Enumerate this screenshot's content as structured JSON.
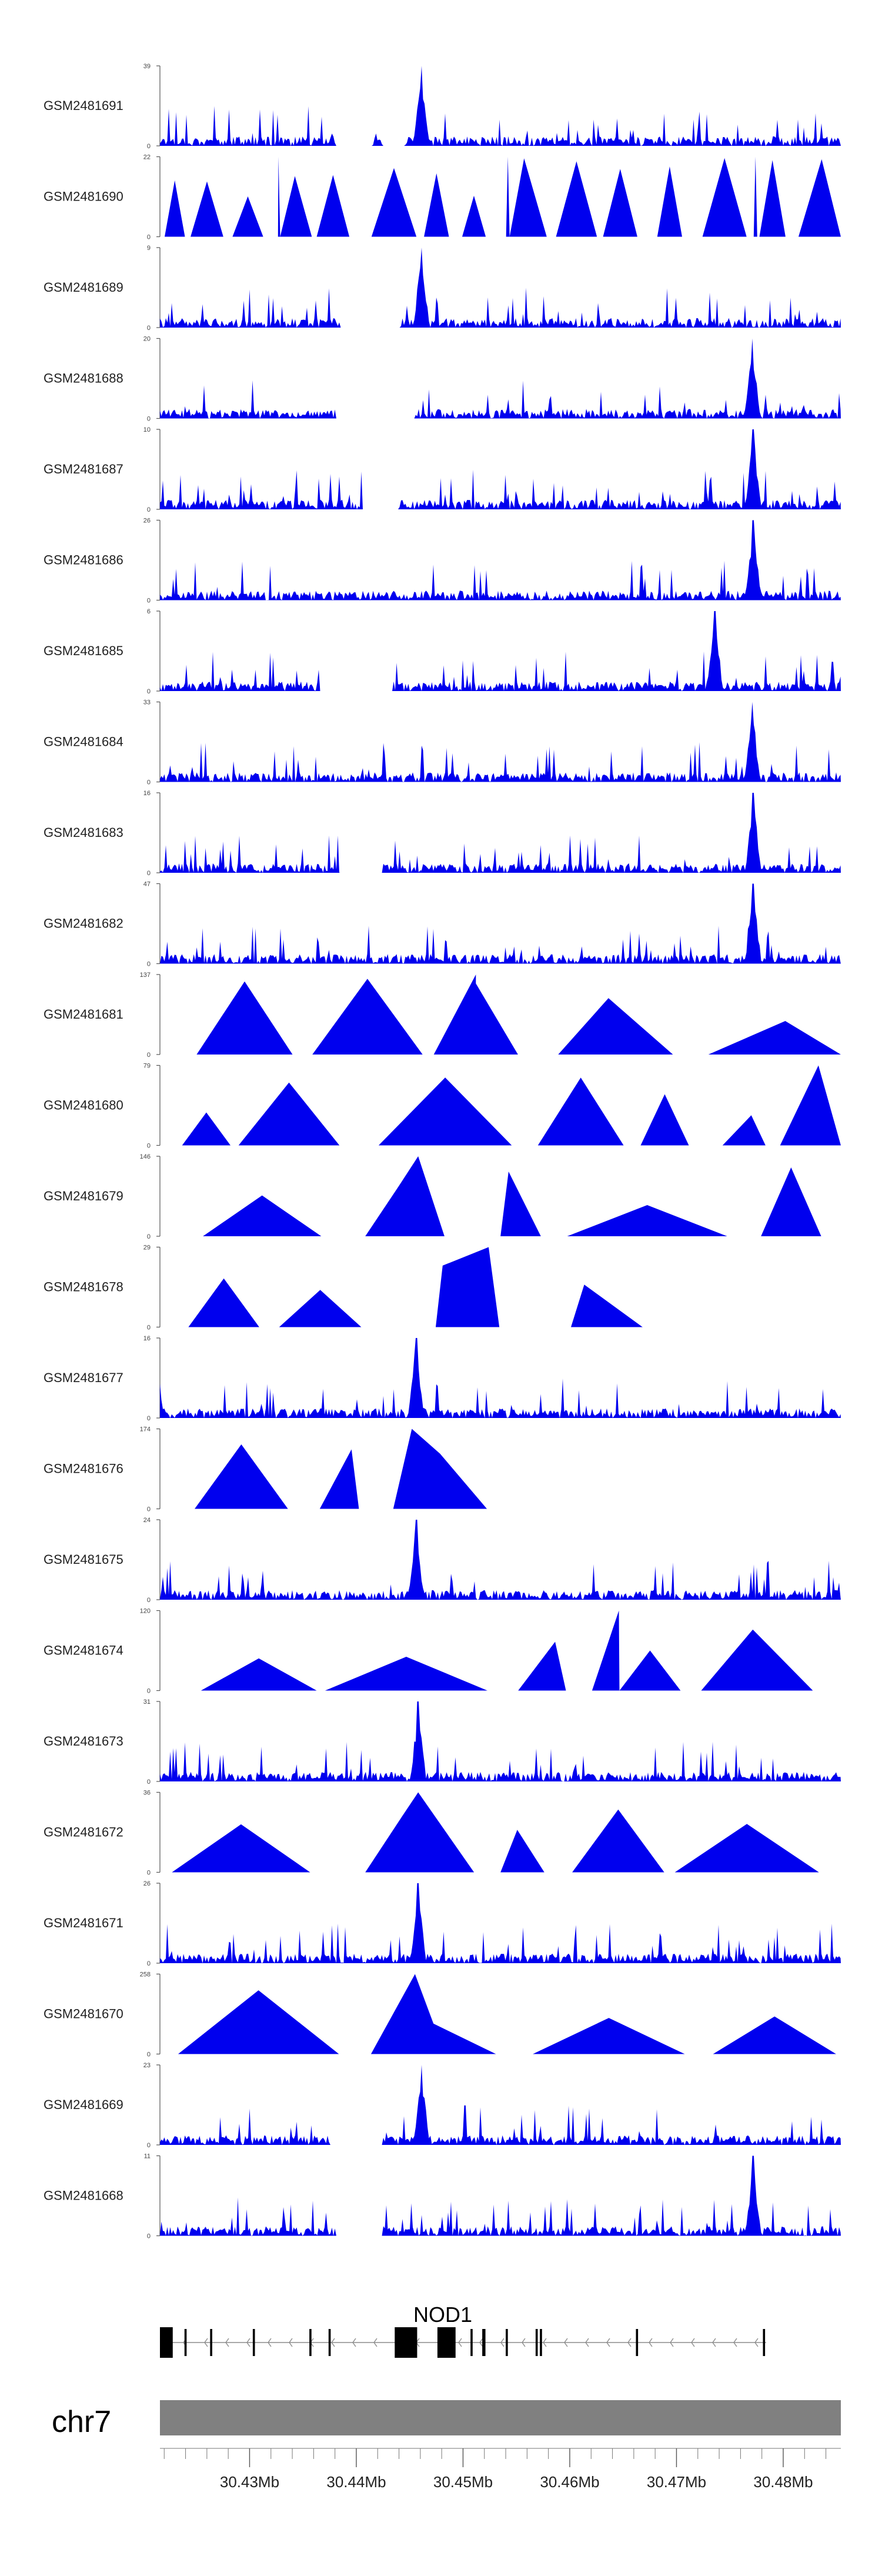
{
  "chart_data": {
    "type": "area",
    "title": "",
    "colors": {
      "signal": "#0000ee",
      "axis": "#555555",
      "chrom_bar": "#808080",
      "gene": "#000000",
      "intron": "#8c8c8c"
    },
    "x_range_mb": [
      30.4216,
      30.4854
    ],
    "tracks": [
      {
        "label": "GSM2481691",
        "ymax": 39,
        "ymin": 0,
        "pattern": "noise",
        "peaks": [
          {
            "x": 30.4461,
            "v": 39
          }
        ],
        "gaps": [
          [
            30.438,
            30.4415
          ],
          [
            30.4425,
            30.4445
          ]
        ]
      },
      {
        "label": "GSM2481690",
        "ymax": 22,
        "ymin": 0,
        "pattern": "sparse",
        "peaks": [
          {
            "x": 30.4327,
            "v": 22
          },
          {
            "x": 30.4542,
            "v": 22
          },
          {
            "x": 30.4774,
            "v": 22
          }
        ],
        "gaps": []
      },
      {
        "label": "GSM2481689",
        "ymax": 9,
        "ymin": 0,
        "pattern": "noise",
        "peaks": [
          {
            "x": 30.4461,
            "v": 9
          }
        ],
        "gaps": [
          [
            30.4385,
            30.444
          ]
        ]
      },
      {
        "label": "GSM2481688",
        "ymax": 20,
        "ymin": 0,
        "pattern": "noise",
        "peaks": [
          {
            "x": 30.4771,
            "v": 20
          }
        ],
        "gaps": [
          [
            30.438,
            30.4455
          ]
        ]
      },
      {
        "label": "GSM2481687",
        "ymax": 10,
        "ymin": 0,
        "pattern": "noise",
        "peaks": [
          {
            "x": 30.4772,
            "v": 10
          }
        ],
        "gaps": [
          [
            30.4405,
            30.444
          ]
        ]
      },
      {
        "label": "GSM2481686",
        "ymax": 26,
        "ymin": 0,
        "pattern": "noise",
        "peaks": [
          {
            "x": 30.4772,
            "v": 26
          }
        ],
        "gaps": []
      },
      {
        "label": "GSM2481685",
        "ymax": 6,
        "ymin": 0,
        "pattern": "noise",
        "peaks": [
          {
            "x": 30.4736,
            "v": 6
          }
        ],
        "gaps": [
          [
            30.4365,
            30.4435
          ]
        ]
      },
      {
        "label": "GSM2481684",
        "ymax": 33,
        "ymin": 0,
        "pattern": "noise",
        "peaks": [
          {
            "x": 30.4771,
            "v": 33
          }
        ],
        "gaps": []
      },
      {
        "label": "GSM2481683",
        "ymax": 16,
        "ymin": 0,
        "pattern": "noise",
        "peaks": [
          {
            "x": 30.4772,
            "v": 16
          }
        ],
        "gaps": [
          [
            30.4385,
            30.4425
          ]
        ]
      },
      {
        "label": "GSM2481682",
        "ymax": 47,
        "ymin": 0,
        "pattern": "noise",
        "peaks": [
          {
            "x": 30.4772,
            "v": 47
          }
        ],
        "gaps": []
      },
      {
        "label": "GSM2481681",
        "ymax": 137,
        "ymin": 0,
        "pattern": "triangles",
        "peaks": [
          {
            "x": 30.4512,
            "v": 137
          }
        ],
        "gaps": []
      },
      {
        "label": "GSM2481680",
        "ymax": 79,
        "ymin": 0,
        "pattern": "triangles",
        "peaks": [
          {
            "x": 30.4833,
            "v": 79
          }
        ],
        "gaps": []
      },
      {
        "label": "GSM2481679",
        "ymax": 146,
        "ymin": 0,
        "pattern": "triangles",
        "peaks": [
          {
            "x": 30.4458,
            "v": 146
          }
        ],
        "gaps": []
      },
      {
        "label": "GSM2481678",
        "ymax": 29,
        "ymin": 0,
        "pattern": "triangles",
        "peaks": [
          {
            "x": 30.4524,
            "v": 29
          }
        ],
        "gaps": []
      },
      {
        "label": "GSM2481677",
        "ymax": 16,
        "ymin": 0,
        "pattern": "noise",
        "peaks": [
          {
            "x": 30.4456,
            "v": 16
          }
        ],
        "gaps": []
      },
      {
        "label": "GSM2481676",
        "ymax": 174,
        "ymin": 0,
        "pattern": "triangles",
        "peaks": [
          {
            "x": 30.4452,
            "v": 174
          }
        ],
        "gaps": []
      },
      {
        "label": "GSM2481675",
        "ymax": 24,
        "ymin": 0,
        "pattern": "noise",
        "peaks": [
          {
            "x": 30.4456,
            "v": 24
          }
        ],
        "gaps": []
      },
      {
        "label": "GSM2481674",
        "ymax": 120,
        "ymin": 0,
        "pattern": "triangles",
        "peaks": [
          {
            "x": 30.4646,
            "v": 120
          }
        ],
        "gaps": []
      },
      {
        "label": "GSM2481673",
        "ymax": 31,
        "ymin": 0,
        "pattern": "noise",
        "peaks": [
          {
            "x": 30.4458,
            "v": 31
          }
        ],
        "gaps": []
      },
      {
        "label": "GSM2481672",
        "ymax": 36,
        "ymin": 0,
        "pattern": "triangles",
        "peaks": [
          {
            "x": 30.4458,
            "v": 36
          }
        ],
        "gaps": []
      },
      {
        "label": "GSM2481671",
        "ymax": 26,
        "ymin": 0,
        "pattern": "noise",
        "peaks": [
          {
            "x": 30.4458,
            "v": 26
          }
        ],
        "gaps": []
      },
      {
        "label": "GSM2481670",
        "ymax": 258,
        "ymin": 0,
        "pattern": "triangles",
        "peaks": [
          {
            "x": 30.4455,
            "v": 258
          }
        ],
        "gaps": []
      },
      {
        "label": "GSM2481669",
        "ymax": 23,
        "ymin": 0,
        "pattern": "noise",
        "peaks": [
          {
            "x": 30.4461,
            "v": 23
          }
        ],
        "gaps": [
          [
            30.4375,
            30.4425
          ]
        ]
      },
      {
        "label": "GSM2481668",
        "ymax": 11,
        "ymin": 0,
        "pattern": "noise",
        "peaks": [
          {
            "x": 30.4772,
            "v": 11
          }
        ],
        "gaps": [
          [
            30.438,
            30.4425
          ]
        ]
      }
    ],
    "gene": {
      "name": "NOD1",
      "strand": "-",
      "start_mb": 30.4216,
      "end_mb": 30.4784,
      "exons_mb": [
        [
          30.4216,
          30.4228
        ],
        [
          30.4239,
          30.4241
        ],
        [
          30.4263,
          30.4265
        ],
        [
          30.4303,
          30.4305
        ],
        [
          30.4356,
          30.4358
        ],
        [
          30.4374,
          30.4376
        ],
        [
          30.4437,
          30.4439
        ],
        [
          30.4436,
          30.4457
        ],
        [
          30.4476,
          30.4493
        ],
        [
          30.4507,
          30.4509
        ],
        [
          30.4518,
          30.4521
        ],
        [
          30.454,
          30.4542
        ],
        [
          30.4568,
          30.457
        ],
        [
          30.4572,
          30.4574
        ],
        [
          30.4662,
          30.4664
        ],
        [
          30.4781,
          30.4783
        ]
      ]
    },
    "chromosome": "chr7",
    "xticks": [
      "30.43Mb",
      "30.44Mb",
      "30.45Mb",
      "30.46Mb",
      "30.47Mb",
      "30.48Mb"
    ],
    "xticks_mb": [
      30.43,
      30.44,
      30.45,
      30.46,
      30.47,
      30.48
    ]
  }
}
